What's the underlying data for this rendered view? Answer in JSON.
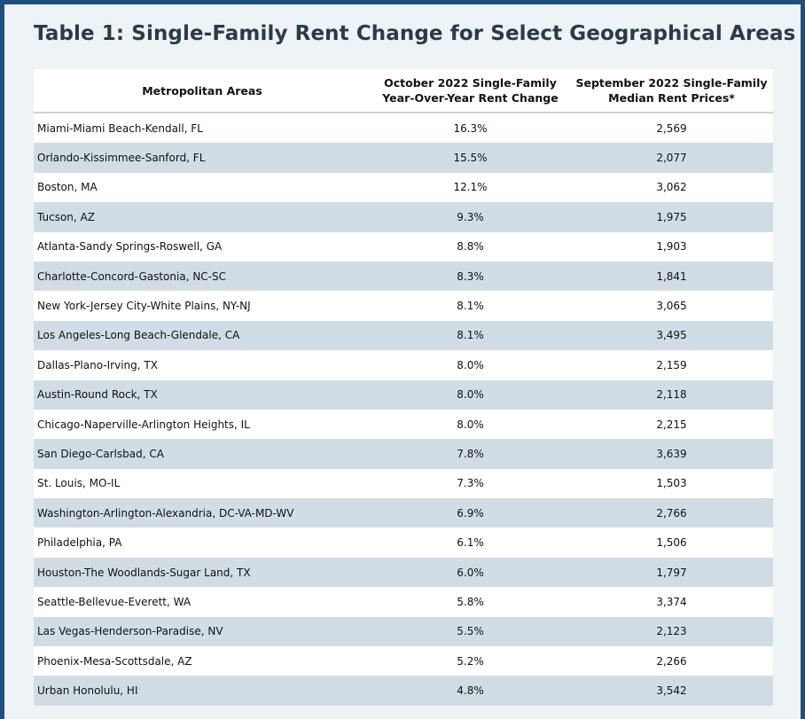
{
  "title": "Table 1: Single-Family Rent Change for Select Geographical Areas",
  "chart_data": {
    "type": "table",
    "title": "Table 1: Single-Family Rent Change for Select Geographical Areas",
    "columns": [
      {
        "line1": "Metropolitan Areas",
        "line2": ""
      },
      {
        "line1": "October 2022 Single-Family",
        "line2": "Year-Over-Year Rent Change"
      },
      {
        "line1": "September 2022 Single-Family",
        "line2": "Median Rent Prices*"
      }
    ],
    "rows": [
      {
        "area": "Miami-Miami Beach-Kendall, FL",
        "change": "16.3%",
        "rent": "2,569"
      },
      {
        "area": "Orlando-Kissimmee-Sanford, FL",
        "change": "15.5%",
        "rent": "2,077"
      },
      {
        "area": "Boston, MA",
        "change": "12.1%",
        "rent": "3,062"
      },
      {
        "area": "Tucson, AZ",
        "change": "9.3%",
        "rent": "1,975"
      },
      {
        "area": "Atlanta-Sandy Springs-Roswell, GA",
        "change": "8.8%",
        "rent": "1,903"
      },
      {
        "area": "Charlotte-Concord-Gastonia, NC-SC",
        "change": "8.3%",
        "rent": "1,841"
      },
      {
        "area": "New York-Jersey City-White Plains, NY-NJ",
        "change": "8.1%",
        "rent": "3,065"
      },
      {
        "area": "Los Angeles-Long Beach-Glendale, CA",
        "change": "8.1%",
        "rent": "3,495"
      },
      {
        "area": "Dallas-Plano-Irving, TX",
        "change": "8.0%",
        "rent": "2,159"
      },
      {
        "area": "Austin-Round Rock, TX",
        "change": "8.0%",
        "rent": "2,118"
      },
      {
        "area": "Chicago-Naperville-Arlington Heights, IL",
        "change": "8.0%",
        "rent": "2,215"
      },
      {
        "area": "San Diego-Carlsbad, CA",
        "change": "7.8%",
        "rent": "3,639"
      },
      {
        "area": "St. Louis, MO-IL",
        "change": "7.3%",
        "rent": "1,503"
      },
      {
        "area": "Washington-Arlington-Alexandria, DC-VA-MD-WV",
        "change": "6.9%",
        "rent": "2,766"
      },
      {
        "area": "Philadelphia, PA",
        "change": "6.1%",
        "rent": "1,506"
      },
      {
        "area": "Houston-The Woodlands-Sugar Land, TX",
        "change": "6.0%",
        "rent": "1,797"
      },
      {
        "area": "Seattle-Bellevue-Everett, WA",
        "change": "5.8%",
        "rent": "3,374"
      },
      {
        "area": "Las Vegas-Henderson-Paradise, NV",
        "change": "5.5%",
        "rent": "2,123"
      },
      {
        "area": "Phoenix-Mesa-Scottsdale, AZ",
        "change": "5.2%",
        "rent": "2,266"
      },
      {
        "area": "Urban Honolulu, HI",
        "change": "4.8%",
        "rent": "3,542"
      }
    ]
  },
  "colors": {
    "frame_border": "#1f4f7a",
    "background": "#eef3f5",
    "row_stripe": "#d0dde5",
    "row_plain": "#ffffff",
    "title_text": "#2b3a4a"
  }
}
